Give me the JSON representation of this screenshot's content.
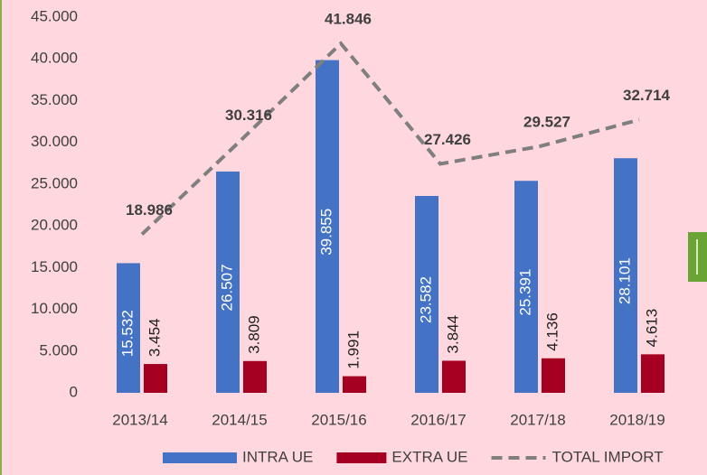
{
  "chart_data": {
    "type": "bar",
    "categories": [
      "2013/14",
      "2014/15",
      "2015/16",
      "2016/17",
      "2017/18",
      "2018/19"
    ],
    "series": [
      {
        "name": "INTRA UE",
        "type": "bar",
        "color": "#4472c4",
        "values": [
          15532,
          26507,
          39855,
          23582,
          25391,
          28101
        ],
        "value_labels": [
          "15.532",
          "26.507",
          "39.855",
          "23.582",
          "25.391",
          "28.101"
        ]
      },
      {
        "name": "EXTRA UE",
        "type": "bar",
        "color": "#a50021",
        "values": [
          3454,
          3809,
          1991,
          3844,
          4136,
          4613
        ],
        "value_labels": [
          "3.454",
          "3.809",
          "1.991",
          "3.844",
          "4.136",
          "4.613"
        ]
      },
      {
        "name": "TOTAL IMPORT",
        "type": "line",
        "color": "#7f7f7f",
        "dashed": true,
        "values": [
          18986,
          30316,
          41846,
          27426,
          29527,
          32714
        ],
        "value_labels": [
          "18.986",
          "30.316",
          "41.846",
          "27.426",
          "29.527",
          "32.714"
        ]
      }
    ],
    "ylim": [
      0,
      45000
    ],
    "yticks": [
      0,
      {
        "value": 5000,
        "label": "5.000"
      },
      {
        "value": 10000,
        "label": "10.000"
      },
      {
        "value": 15000,
        "label": "15.000"
      },
      {
        "value": 20000,
        "label": "20.000"
      },
      {
        "value": 25000,
        "label": "25.000"
      },
      {
        "value": 30000,
        "label": "30.000"
      },
      {
        "value": 35000,
        "label": "35.000"
      },
      {
        "value": 40000,
        "label": "40.000"
      },
      {
        "value": 45000,
        "label": "45.000"
      }
    ],
    "grid": false,
    "legend": "bottom"
  }
}
